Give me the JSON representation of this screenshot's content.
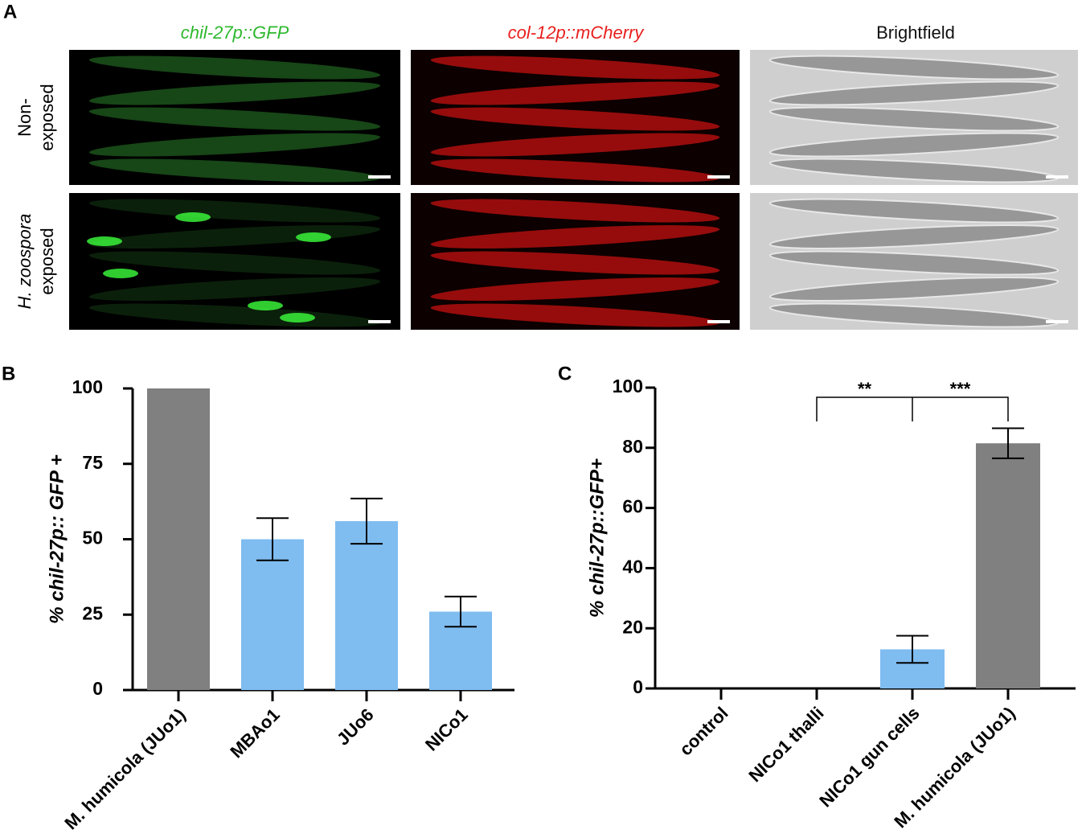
{
  "panel_a": {
    "letter": "A",
    "columns": [
      "chil-27p::GFP",
      "col-12p::mCherry",
      "Brightfield"
    ],
    "rows": [
      [
        "Non-",
        "exposed"
      ],
      [
        "H. zoospora",
        "exposed"
      ]
    ]
  },
  "chart_data": [
    {
      "type": "bar",
      "letter": "B",
      "ylabel": "% chil-27p:: GFP +",
      "categories": [
        "M. humicola (JUo1)",
        "MBAo1",
        "JUo6",
        "NICo1"
      ],
      "values": [
        100,
        50,
        56,
        26
      ],
      "errors": [
        null,
        7,
        7.5,
        5
      ],
      "colors": [
        "#808080",
        "#7fbcf0",
        "#7fbcf0",
        "#7fbcf0"
      ],
      "ylim": [
        0,
        100
      ],
      "yticks": [
        0,
        25,
        50,
        75,
        100
      ]
    },
    {
      "type": "bar",
      "letter": "C",
      "ylabel": "% chil-27p::GFP+",
      "categories": [
        "control",
        "NICo1 thalli",
        "NICo1 gun cells",
        "M. humicola (JUo1)"
      ],
      "values": [
        0,
        0,
        13,
        81.5
      ],
      "errors": [
        null,
        null,
        4.5,
        5
      ],
      "colors": [
        "#7fbcf0",
        "#7fbcf0",
        "#7fbcf0",
        "#808080"
      ],
      "ylim": [
        0,
        100
      ],
      "yticks": [
        0,
        20,
        40,
        60,
        80,
        100
      ],
      "annotations": [
        "**",
        "***"
      ]
    }
  ]
}
